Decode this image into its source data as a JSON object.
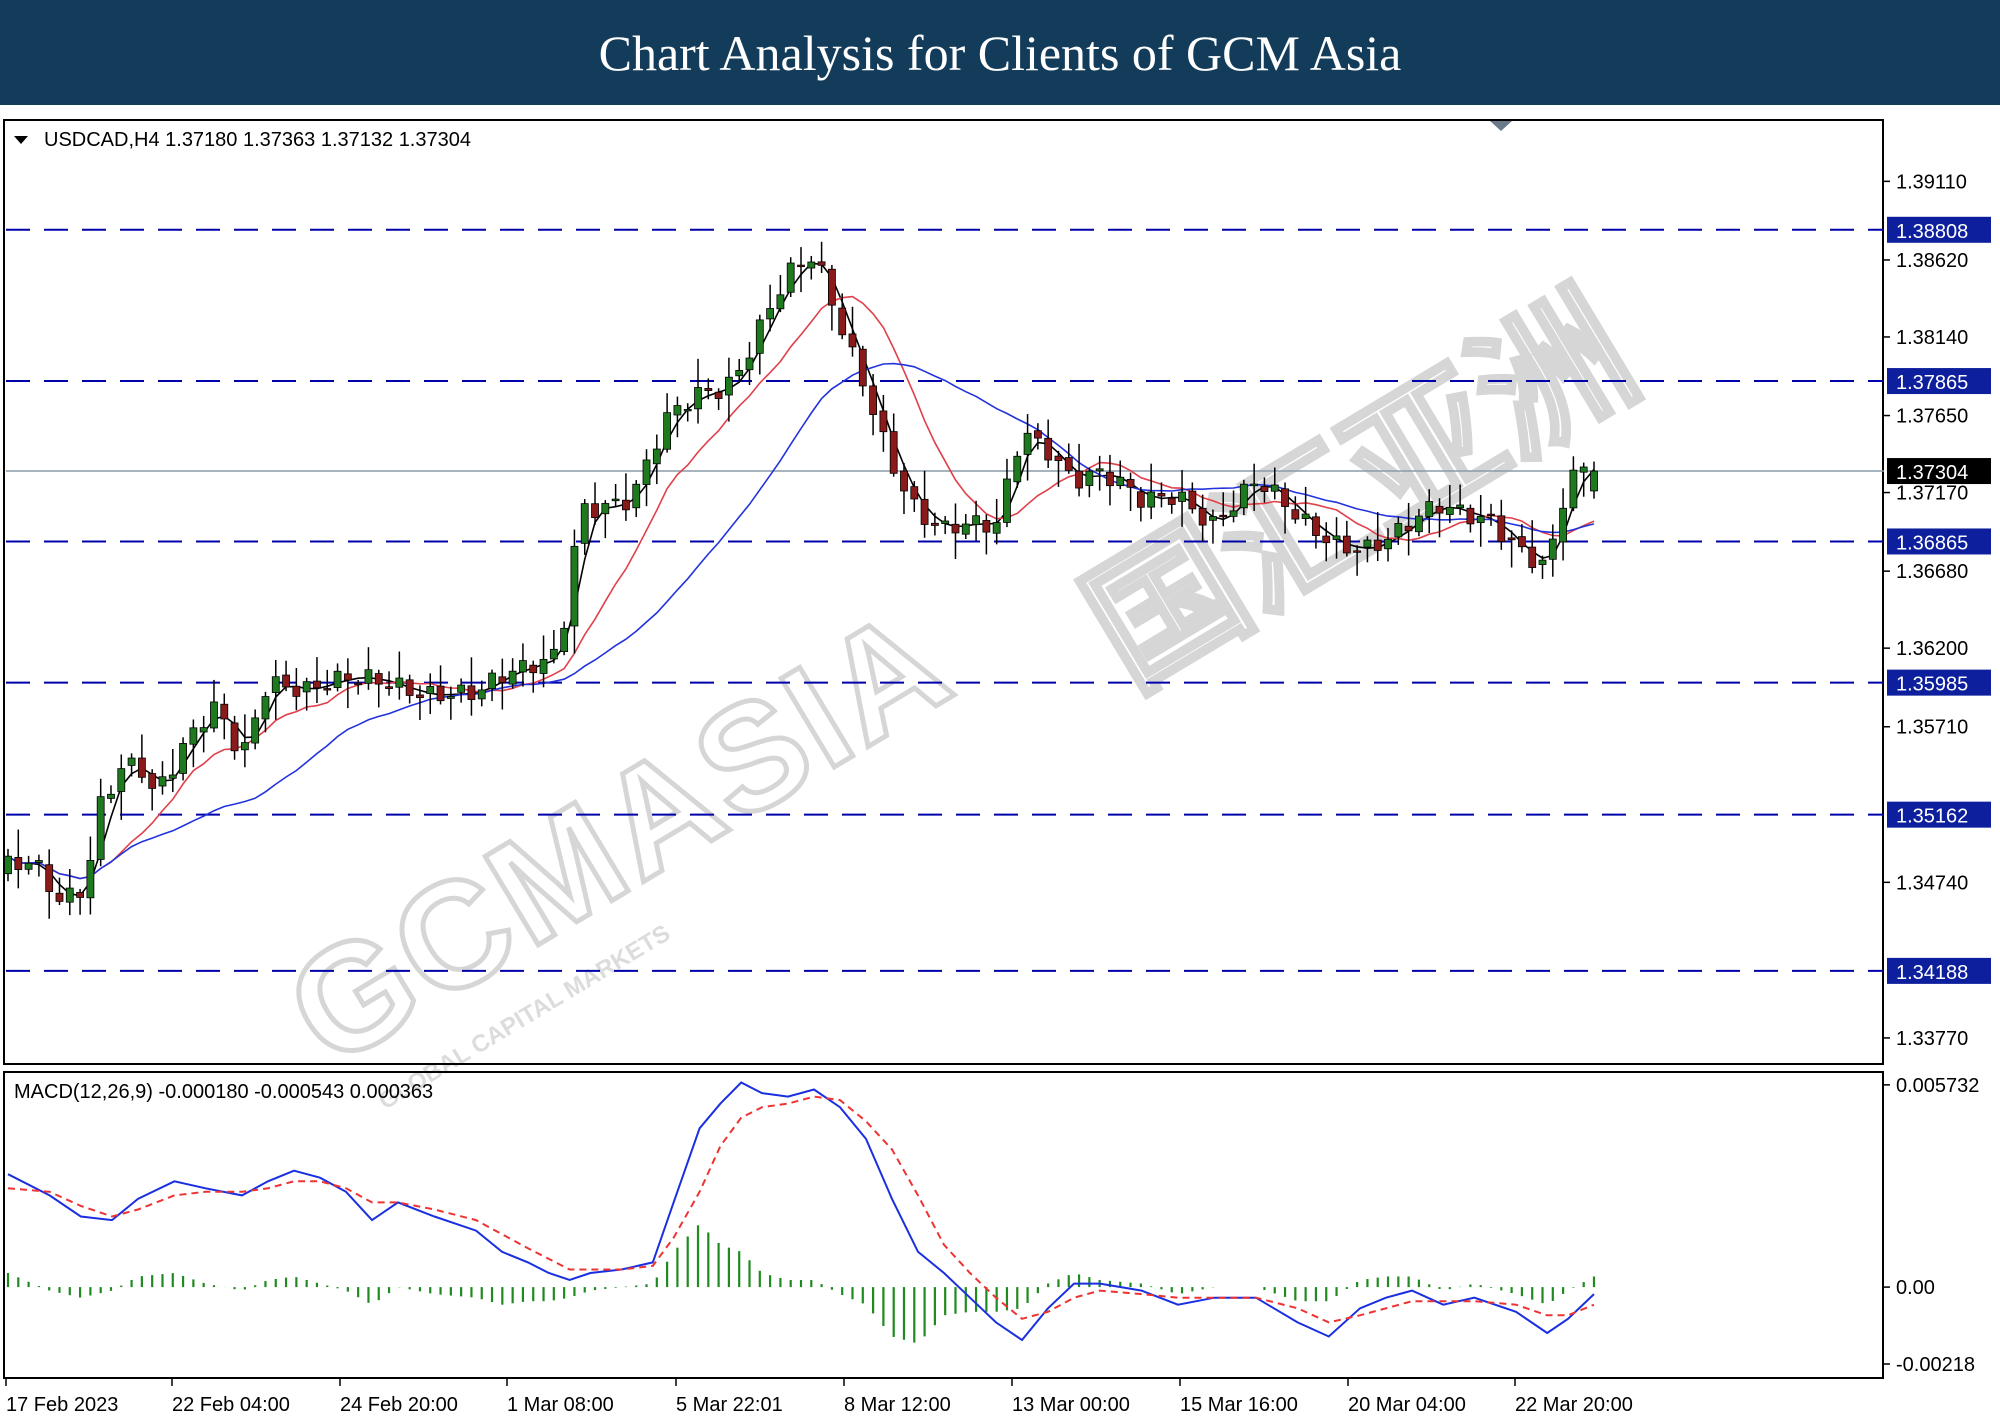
{
  "header": {
    "title": "Chart Analysis for Clients of GCM Asia"
  },
  "watermark": {
    "brand": "GCMASIA",
    "tagline": "GLOBAL CAPITAL MARKETS",
    "cjk": "国汇亚洲"
  },
  "chart_data": [
    {
      "type": "candlestick",
      "symbol_label": "USDCAD,H4  1.37180 1.37363 1.37132 1.37304",
      "ohlc": {
        "open": 1.3718,
        "high": 1.37363,
        "low": 1.37132,
        "close": 1.37304
      },
      "ylim": [
        1.3362,
        1.3948
      ],
      "y_ticks": [
        1.3911,
        1.3862,
        1.3814,
        1.3765,
        1.3717,
        1.3668,
        1.362,
        1.3571,
        1.3474,
        1.3377
      ],
      "y_tick_labels": [
        "1.39110",
        "1.38620",
        "1.38140",
        "1.37650",
        "1.37170",
        "1.36680",
        "1.36200",
        "1.35710",
        "1.34740",
        "1.33770"
      ],
      "current_price": {
        "value": 1.37304,
        "label": "1.37304"
      },
      "levels": [
        {
          "value": 1.38808,
          "label": "1.38808"
        },
        {
          "value": 1.37865,
          "label": "1.37865"
        },
        {
          "value": 1.36865,
          "label": "1.36865"
        },
        {
          "value": 1.35985,
          "label": "1.35985"
        },
        {
          "value": 1.35162,
          "label": "1.35162"
        },
        {
          "value": 1.34188,
          "label": "1.34188"
        }
      ],
      "x_labels": [
        "17 Feb 2023",
        "22 Feb 04:00",
        "24 Feb 20:00",
        "1 Mar 08:00",
        "5 Mar 22:01",
        "8 Mar 12:00",
        "13 Mar 00:00",
        "15 Mar 16:00",
        "20 Mar 04:00",
        "22 Mar 20:00"
      ],
      "candle_count": 155,
      "close_path_keypoints": [
        [
          0,
          1.3485
        ],
        [
          5,
          1.3482
        ],
        [
          10,
          1.3457
        ],
        [
          15,
          1.3472
        ],
        [
          18,
          1.353
        ],
        [
          22,
          1.355
        ],
        [
          25,
          1.3555
        ],
        [
          28,
          1.353
        ],
        [
          32,
          1.3545
        ],
        [
          35,
          1.356
        ],
        [
          40,
          1.358
        ],
        [
          45,
          1.3553
        ],
        [
          50,
          1.3605
        ],
        [
          58,
          1.3595
        ],
        [
          65,
          1.3596
        ],
        [
          75,
          1.3598
        ],
        [
          85,
          1.3595
        ],
        [
          90,
          1.359
        ],
        [
          100,
          1.3605
        ],
        [
          106,
          1.362
        ],
        [
          110,
          1.3712
        ],
        [
          120,
          1.371
        ],
        [
          127,
          1.376
        ],
        [
          133,
          1.378
        ],
        [
          138,
          1.3787
        ],
        [
          141,
          1.38
        ],
        [
          145,
          1.3825
        ],
        [
          150,
          1.385
        ],
        [
          155,
          1.386
        ],
        [
          160,
          1.382
        ],
        [
          165,
          1.3785
        ],
        [
          170,
          1.374
        ],
        [
          175,
          1.3705
        ],
        [
          180,
          1.369
        ],
        [
          190,
          1.3695
        ],
        [
          195,
          1.376
        ],
        [
          200,
          1.3748
        ],
        [
          205,
          1.3725
        ],
        [
          210,
          1.3725
        ],
        [
          218,
          1.371
        ],
        [
          225,
          1.372
        ],
        [
          232,
          1.37
        ],
        [
          240,
          1.372
        ],
        [
          248,
          1.37
        ],
        [
          255,
          1.369
        ],
        [
          262,
          1.3685
        ],
        [
          268,
          1.369
        ],
        [
          275,
          1.3705
        ],
        [
          285,
          1.3705
        ],
        [
          292,
          1.368
        ],
        [
          296,
          1.3668
        ],
        [
          300,
          1.372
        ],
        [
          305,
          1.373
        ]
      ],
      "ma_black_period_note": "",
      "series": []
    },
    {
      "type": "line",
      "title": "MACD(12,26,9) -0.000180 -0.000543 0.000363",
      "macd": -0.00018,
      "signal": -0.000543,
      "histogram": 0.000363,
      "ylim": [
        -0.00252,
        0.00604
      ],
      "y_tick_labels": [
        "0.005732",
        "0.00",
        "-0.00218"
      ],
      "y_ticks": [
        0.005732,
        0.0,
        -0.00218
      ],
      "macd_keypoints": [
        [
          0,
          0.0032
        ],
        [
          8,
          0.0026
        ],
        [
          14,
          0.002
        ],
        [
          20,
          0.0019
        ],
        [
          25,
          0.0025
        ],
        [
          32,
          0.003
        ],
        [
          38,
          0.0028
        ],
        [
          45,
          0.0026
        ],
        [
          50,
          0.003
        ],
        [
          55,
          0.0033
        ],
        [
          60,
          0.0031
        ],
        [
          65,
          0.0027
        ],
        [
          70,
          0.0019
        ],
        [
          75,
          0.0024
        ],
        [
          82,
          0.002
        ],
        [
          90,
          0.0016
        ],
        [
          95,
          0.001
        ],
        [
          100,
          0.0007
        ],
        [
          104,
          0.0004
        ],
        [
          108,
          0.0002
        ],
        [
          112,
          0.0004
        ],
        [
          118,
          0.0005
        ],
        [
          124,
          0.0007
        ],
        [
          128,
          0.0024
        ],
        [
          133,
          0.0045
        ],
        [
          137,
          0.0052
        ],
        [
          141,
          0.0058
        ],
        [
          145,
          0.0055
        ],
        [
          150,
          0.0054
        ],
        [
          155,
          0.0056
        ],
        [
          160,
          0.0051
        ],
        [
          165,
          0.0042
        ],
        [
          170,
          0.0025
        ],
        [
          175,
          0.001
        ],
        [
          180,
          0.0004
        ],
        [
          185,
          -0.0003
        ],
        [
          190,
          -0.001
        ],
        [
          195,
          -0.0015
        ],
        [
          200,
          -0.0006
        ],
        [
          205,
          0.0001
        ],
        [
          210,
          0.0001
        ],
        [
          218,
          -0.0001
        ],
        [
          225,
          -0.0005
        ],
        [
          232,
          -0.0003
        ],
        [
          240,
          -0.0003
        ],
        [
          248,
          -0.001
        ],
        [
          254,
          -0.0014
        ],
        [
          260,
          -0.0006
        ],
        [
          265,
          -0.0003
        ],
        [
          270,
          -0.0001
        ],
        [
          276,
          -0.0005
        ],
        [
          282,
          -0.0003
        ],
        [
          290,
          -0.0007
        ],
        [
          296,
          -0.0013
        ],
        [
          300,
          -0.0009
        ],
        [
          305,
          -0.0002
        ]
      ],
      "signal_keypoints": [
        [
          0,
          0.0028
        ],
        [
          8,
          0.0027
        ],
        [
          14,
          0.0023
        ],
        [
          20,
          0.002
        ],
        [
          25,
          0.0022
        ],
        [
          32,
          0.0026
        ],
        [
          38,
          0.0027
        ],
        [
          45,
          0.0027
        ],
        [
          50,
          0.0028
        ],
        [
          55,
          0.003
        ],
        [
          60,
          0.003
        ],
        [
          65,
          0.0028
        ],
        [
          70,
          0.0024
        ],
        [
          75,
          0.0024
        ],
        [
          82,
          0.0022
        ],
        [
          90,
          0.0019
        ],
        [
          95,
          0.0015
        ],
        [
          100,
          0.0011
        ],
        [
          104,
          0.0008
        ],
        [
          108,
          0.0005
        ],
        [
          112,
          0.0005
        ],
        [
          118,
          0.0005
        ],
        [
          124,
          0.0006
        ],
        [
          128,
          0.0014
        ],
        [
          133,
          0.0027
        ],
        [
          137,
          0.004
        ],
        [
          141,
          0.0048
        ],
        [
          145,
          0.0051
        ],
        [
          150,
          0.0052
        ],
        [
          155,
          0.0054
        ],
        [
          160,
          0.0053
        ],
        [
          165,
          0.0047
        ],
        [
          170,
          0.0039
        ],
        [
          175,
          0.0026
        ],
        [
          180,
          0.0012
        ],
        [
          185,
          0.0004
        ],
        [
          190,
          -0.0003
        ],
        [
          195,
          -0.0009
        ],
        [
          200,
          -0.0007
        ],
        [
          205,
          -0.0003
        ],
        [
          210,
          -0.0001
        ],
        [
          218,
          -0.0002
        ],
        [
          225,
          -0.0003
        ],
        [
          232,
          -0.0003
        ],
        [
          240,
          -0.0003
        ],
        [
          248,
          -0.0006
        ],
        [
          254,
          -0.001
        ],
        [
          260,
          -0.0008
        ],
        [
          265,
          -0.0006
        ],
        [
          270,
          -0.0004
        ],
        [
          276,
          -0.0004
        ],
        [
          282,
          -0.0004
        ],
        [
          290,
          -0.0005
        ],
        [
          296,
          -0.0008
        ],
        [
          300,
          -0.0008
        ],
        [
          305,
          -0.0005
        ]
      ]
    }
  ],
  "colors": {
    "banner": "#133c5a",
    "bull": "#1f7a1f",
    "bear": "#8b1a1a",
    "wick": "#000000",
    "ma_fast": "#000000",
    "ma_mid": "#e0404a",
    "ma_slow": "#2233dd",
    "level_line": "#0000aa",
    "level_label_bg": "#0d1f9c",
    "price_line": "#8a9aa8",
    "macd_line": "#1a2fe0",
    "signal_line": "#ee3333",
    "histogram": "#1f8a1f"
  }
}
